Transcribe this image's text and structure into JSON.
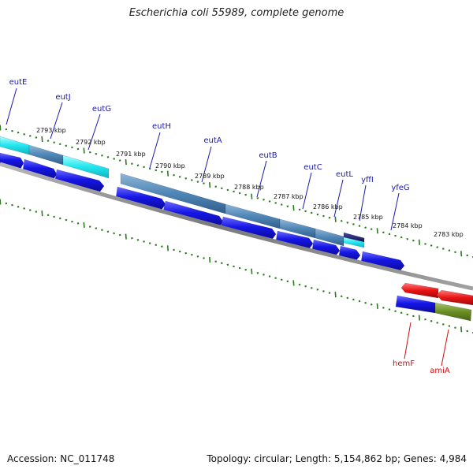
{
  "title": "Escherichia coli 55989, complete genome",
  "accession_label": "Accession: NC_011748",
  "stats_label": "Topology: circular; Length: 5,154,862 bp; Genes: 4,984",
  "colors": {
    "forward_label": "#1a1aa8",
    "reverse_label": "#cc1111",
    "cds_blue": "#1616e6",
    "cyan": "#22e6ee",
    "steel": "#4f86b6",
    "navy": "#1a1a6e",
    "red": "#e81414",
    "olive": "#6b8e23",
    "backbone": "#8a8a8a",
    "tick": "#2a7a1e"
  },
  "kbp_labels": [
    {
      "text": "2793 kbp"
    },
    {
      "text": "2792 kbp"
    },
    {
      "text": "2791 kbp"
    },
    {
      "text": "2790 kbp"
    },
    {
      "text": "2789 kbp"
    },
    {
      "text": "2788 kbp"
    },
    {
      "text": "2787 kbp"
    },
    {
      "text": "2786 kbp"
    },
    {
      "text": "2785 kbp"
    },
    {
      "text": "2784 kbp"
    },
    {
      "text": "2783 kbp"
    }
  ],
  "genes": [
    {
      "name": "eutE",
      "strand": "forward"
    },
    {
      "name": "eutJ",
      "strand": "forward"
    },
    {
      "name": "eutG",
      "strand": "forward"
    },
    {
      "name": "eutH",
      "strand": "forward"
    },
    {
      "name": "eutA",
      "strand": "forward"
    },
    {
      "name": "eutB",
      "strand": "forward"
    },
    {
      "name": "eutC",
      "strand": "forward"
    },
    {
      "name": "eutL",
      "strand": "forward"
    },
    {
      "name": "yffI",
      "strand": "forward"
    },
    {
      "name": "yfeG",
      "strand": "forward"
    },
    {
      "name": "hemF",
      "strand": "reverse"
    },
    {
      "name": "amiA",
      "strand": "reverse"
    }
  ]
}
